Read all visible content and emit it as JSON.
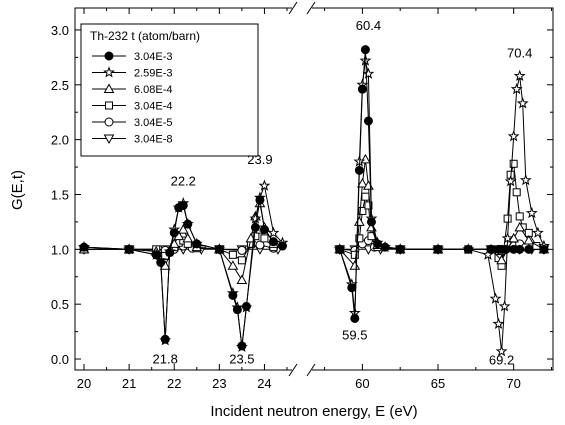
{
  "chart_data": {
    "type": "line",
    "xlabel": "Incident neutron energy, E (eV)",
    "ylabel": "G(E,t)",
    "ylim": [
      -0.1,
      3.2
    ],
    "x_ticks": [
      "20",
      "21",
      "22",
      "23",
      "24",
      "60",
      "65",
      "70"
    ],
    "y_ticks": [
      "0.0",
      "0.5",
      "1.0",
      "1.5",
      "2.0",
      "2.5",
      "3.0"
    ],
    "axis_break": "24.5 to 57 eV",
    "grid": false,
    "legend": {
      "title": "Th-232 t (atom/barn)",
      "placement": "top-left"
    },
    "annotations": [
      {
        "text": "22.2",
        "x": 22.2,
        "y": 1.58
      },
      {
        "text": "23.9",
        "x": 23.9,
        "y": 1.78
      },
      {
        "text": "60.4",
        "x": 60.4,
        "y": 3.0
      },
      {
        "text": "70.4",
        "x": 70.4,
        "y": 2.75
      },
      {
        "text": "21.8",
        "x": 21.8,
        "y": -0.04
      },
      {
        "text": "23.5",
        "x": 23.5,
        "y": -0.04
      },
      {
        "text": "59.5",
        "x": 59.5,
        "y": 0.18
      },
      {
        "text": "69.2",
        "x": 69.2,
        "y": -0.05
      }
    ],
    "series": [
      {
        "name": "3.04E-3",
        "marker": "circle-filled",
        "x": [
          20,
          21,
          21.6,
          21.7,
          21.8,
          21.9,
          22.0,
          22.1,
          22.2,
          22.3,
          22.5,
          23.0,
          23.3,
          23.4,
          23.5,
          23.6,
          23.8,
          23.9,
          24.0,
          24.2,
          24.4,
          58.5,
          59.3,
          59.5,
          59.8,
          60.0,
          60.2,
          60.4,
          60.6,
          61.0,
          61.5,
          62.5,
          65,
          67,
          68.5,
          69.0,
          69.2,
          69.5,
          70.0,
          70.4,
          71.0,
          72.0
        ],
        "y": [
          1.02,
          1.0,
          0.95,
          0.88,
          0.18,
          0.97,
          1.15,
          1.38,
          1.4,
          1.23,
          1.05,
          1.0,
          0.58,
          0.45,
          0.12,
          0.48,
          1.2,
          1.45,
          1.18,
          1.07,
          1.03,
          1.0,
          0.65,
          0.37,
          1.72,
          2.46,
          2.82,
          2.17,
          1.25,
          1.05,
          1.02,
          1.0,
          1.0,
          1.0,
          1.0,
          1.0,
          1.0,
          1.0,
          1.0,
          1.0,
          1.0,
          1.0
        ]
      },
      {
        "name": "2.59E-3",
        "marker": "star-open",
        "x": [
          20,
          21,
          21.6,
          21.7,
          21.8,
          21.9,
          22.0,
          22.1,
          22.2,
          22.3,
          22.5,
          23.0,
          23.3,
          23.4,
          23.5,
          23.6,
          23.8,
          23.9,
          24.0,
          24.2,
          24.4,
          58.5,
          59.3,
          59.5,
          59.8,
          60.0,
          60.2,
          60.4,
          60.6,
          61.0,
          61.5,
          62.5,
          65,
          67,
          68.3,
          68.8,
          69.0,
          69.2,
          69.4,
          69.6,
          69.8,
          70.0,
          70.2,
          70.4,
          70.6,
          70.8,
          71.2,
          71.6,
          72.0
        ],
        "y": [
          1.02,
          1.0,
          0.95,
          0.9,
          0.17,
          0.98,
          1.18,
          1.38,
          1.42,
          1.23,
          1.05,
          1.0,
          0.6,
          0.47,
          0.11,
          0.47,
          1.28,
          1.47,
          1.58,
          1.15,
          1.06,
          1.0,
          0.68,
          0.42,
          1.8,
          2.5,
          2.72,
          2.6,
          1.28,
          1.06,
          1.02,
          1.0,
          1.0,
          1.0,
          0.95,
          0.55,
          0.32,
          0.07,
          0.48,
          1.1,
          1.62,
          2.03,
          2.46,
          2.58,
          2.33,
          1.63,
          1.33,
          1.15,
          1.03
        ]
      },
      {
        "name": "6.08E-4",
        "marker": "triangle-up-open",
        "x": [
          20,
          21,
          21.6,
          21.8,
          22.0,
          22.1,
          22.2,
          22.3,
          22.5,
          23.0,
          23.3,
          23.5,
          23.7,
          23.8,
          23.9,
          24.0,
          24.2,
          58.5,
          59.5,
          59.8,
          60.0,
          60.2,
          60.4,
          60.6,
          61.0,
          62.5,
          65,
          68.5,
          69.2,
          70.0,
          70.4,
          71.0,
          72.0
        ],
        "y": [
          1.0,
          1.0,
          0.98,
          0.85,
          1.05,
          1.12,
          1.18,
          1.1,
          1.02,
          1.0,
          0.85,
          0.72,
          1.1,
          1.3,
          1.42,
          1.2,
          1.05,
          1.0,
          0.85,
          1.25,
          1.6,
          1.82,
          1.58,
          1.2,
          1.04,
          1.0,
          1.0,
          1.0,
          0.9,
          1.1,
          1.2,
          1.08,
          1.0
        ]
      },
      {
        "name": "3.04E-4",
        "marker": "square-open",
        "x": [
          20,
          21,
          21.6,
          21.8,
          22.0,
          22.1,
          22.2,
          22.3,
          22.5,
          23.0,
          23.3,
          23.5,
          23.7,
          23.8,
          23.9,
          24.0,
          24.2,
          58.5,
          59.5,
          59.8,
          60.0,
          60.2,
          60.4,
          60.6,
          61.0,
          62.5,
          65,
          67,
          68.5,
          69.0,
          69.2,
          69.6,
          69.8,
          70.0,
          70.2,
          70.4,
          70.6,
          71.0,
          71.5,
          72.0
        ],
        "y": [
          1.0,
          1.0,
          1.0,
          0.94,
          1.02,
          1.06,
          1.08,
          1.05,
          1.01,
          1.0,
          0.95,
          0.9,
          1.05,
          1.12,
          1.18,
          1.1,
          1.02,
          1.0,
          0.95,
          1.1,
          1.35,
          1.48,
          1.4,
          1.12,
          1.02,
          1.0,
          1.0,
          1.0,
          1.0,
          0.92,
          0.85,
          1.28,
          1.68,
          1.78,
          1.52,
          1.3,
          1.2,
          1.15,
          1.03,
          1.0
        ]
      },
      {
        "name": "3.04E-5",
        "marker": "circle-open",
        "x": [
          20,
          21,
          21.8,
          22.0,
          22.2,
          22.4,
          23.0,
          23.5,
          23.9,
          24.2,
          58.5,
          59.5,
          60.0,
          60.4,
          60.8,
          62.5,
          65,
          68.5,
          69.2,
          70.0,
          70.4,
          70.8,
          72.0
        ],
        "y": [
          1.0,
          1.0,
          0.99,
          1.0,
          1.03,
          1.01,
          1.0,
          0.99,
          1.04,
          1.01,
          1.0,
          0.99,
          1.05,
          1.08,
          1.02,
          1.0,
          1.0,
          1.0,
          0.98,
          1.03,
          1.05,
          1.02,
          1.0
        ]
      },
      {
        "name": "3.04E-8",
        "marker": "triangle-down-open",
        "x": [
          20,
          21,
          21.8,
          22.2,
          22.6,
          23.0,
          23.5,
          23.9,
          24.3,
          58.5,
          59.5,
          60.4,
          61.2,
          62.5,
          65,
          68.5,
          69.2,
          70.4,
          71.2,
          72.0
        ],
        "y": [
          1.0,
          1.0,
          1.0,
          1.0,
          1.0,
          1.0,
          1.0,
          1.0,
          1.0,
          1.0,
          1.0,
          1.0,
          1.0,
          1.0,
          1.0,
          1.0,
          1.0,
          1.0,
          1.0,
          1.0
        ]
      }
    ]
  }
}
